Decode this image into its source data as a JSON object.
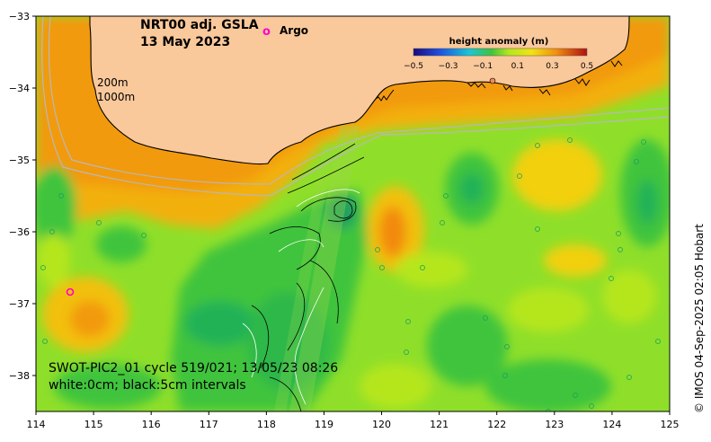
{
  "title_line1": "NRT00 adj. GSLA",
  "title_line2": "13 May 2023",
  "argo_marker": "o",
  "argo_label": "Argo",
  "depth_labels": [
    "200m",
    "1000m"
  ],
  "colorbar": {
    "title": "height anomaly (m)",
    "range": [
      -0.5,
      0.5
    ],
    "tick_labels": [
      "−0.5",
      "−0.3",
      "−0.1",
      "0.1",
      "0.3",
      "0.5"
    ],
    "tick_values": [
      -0.5,
      -0.3,
      -0.1,
      0.1,
      0.3,
      0.5
    ]
  },
  "caption_line1": "SWOT-PIC2_01 cycle 519/021; 13/05/23 08:26",
  "caption_line2": "white:0cm; black:5cm intervals",
  "credit": "© IMOS 04-Sep-2025 02:05 Hobart",
  "axes": {
    "x_range": [
      114,
      125
    ],
    "y_range": [
      -38.5,
      -33
    ],
    "x_ticks": [
      "114",
      "115",
      "116",
      "117",
      "118",
      "119",
      "120",
      "121",
      "122",
      "123",
      "124",
      "125"
    ],
    "y_ticks": [
      "−33",
      "−34",
      "−35",
      "−36",
      "−37",
      "−38"
    ],
    "y_tick_values": [
      -33,
      -34,
      -35,
      -36,
      -37,
      -38
    ]
  },
  "colors": {
    "land": "#f9c89b",
    "ocean_mid": "#8fdf2a",
    "ocean_green": "#3fc43c",
    "ocean_yellow": "#f2e310",
    "ocean_orange": "#f2a310",
    "argo": "#ff00cc"
  }
}
